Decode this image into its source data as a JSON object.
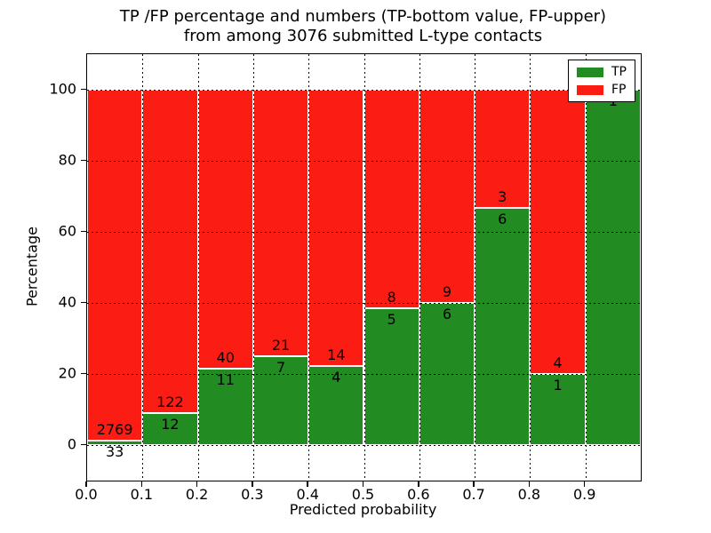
{
  "figure": {
    "title_line1": "TP /FP percentage and numbers (TP-bottom value, FP-upper)",
    "title_line2": "from among 3076 submitted L-type contacts",
    "xlabel": "Predicted probability",
    "ylabel": "Percentage"
  },
  "legend": {
    "position": "upper right",
    "items": [
      {
        "label": "TP",
        "color": "#228b22"
      },
      {
        "label": "FP",
        "color": "#fb1d13"
      }
    ]
  },
  "colors": {
    "tp": "#228b22",
    "fp": "#fb1d13",
    "grid": "#000000",
    "bar_edge": "#ffffff",
    "background": "#ffffff"
  },
  "chart_data": {
    "type": "bar",
    "stacked": true,
    "normalized_to_percent": true,
    "title": "TP /FP percentage and numbers (TP-bottom value, FP-upper) from among 3076 submitted L-type contacts",
    "xlabel": "Predicted probability",
    "ylabel": "Percentage",
    "total_contacts": 3076,
    "xlim": [
      0.0,
      1.0
    ],
    "ylim": [
      -10,
      110
    ],
    "grid": "dotted",
    "legend_position": "upper right",
    "xticks": [
      {
        "value": 0.0,
        "label": "0.0"
      },
      {
        "value": 0.1,
        "label": "0.1"
      },
      {
        "value": 0.2,
        "label": "0.2"
      },
      {
        "value": 0.3,
        "label": "0.3"
      },
      {
        "value": 0.4,
        "label": "0.4"
      },
      {
        "value": 0.5,
        "label": "0.5"
      },
      {
        "value": 0.6,
        "label": "0.6"
      },
      {
        "value": 0.7,
        "label": "0.7"
      },
      {
        "value": 0.8,
        "label": "0.8"
      },
      {
        "value": 0.9,
        "label": "0.9"
      }
    ],
    "yticks": [
      {
        "value": 0,
        "label": "0"
      },
      {
        "value": 20,
        "label": "20"
      },
      {
        "value": 40,
        "label": "40"
      },
      {
        "value": 60,
        "label": "60"
      },
      {
        "value": 80,
        "label": "80"
      },
      {
        "value": 100,
        "label": "100"
      }
    ],
    "bins": [
      {
        "x_range": [
          0.0,
          0.1
        ],
        "tp": 33,
        "fp": 2769,
        "tp_pct": 1.18,
        "fp_pct": 98.82
      },
      {
        "x_range": [
          0.1,
          0.2
        ],
        "tp": 12,
        "fp": 122,
        "tp_pct": 8.96,
        "fp_pct": 91.04
      },
      {
        "x_range": [
          0.2,
          0.3
        ],
        "tp": 11,
        "fp": 40,
        "tp_pct": 21.57,
        "fp_pct": 78.43
      },
      {
        "x_range": [
          0.3,
          0.4
        ],
        "tp": 7,
        "fp": 21,
        "tp_pct": 25.0,
        "fp_pct": 75.0
      },
      {
        "x_range": [
          0.4,
          0.5
        ],
        "tp": 4,
        "fp": 14,
        "tp_pct": 22.22,
        "fp_pct": 77.78
      },
      {
        "x_range": [
          0.5,
          0.6
        ],
        "tp": 5,
        "fp": 8,
        "tp_pct": 38.46,
        "fp_pct": 61.54
      },
      {
        "x_range": [
          0.6,
          0.7
        ],
        "tp": 6,
        "fp": 9,
        "tp_pct": 40.0,
        "fp_pct": 60.0
      },
      {
        "x_range": [
          0.7,
          0.8
        ],
        "tp": 6,
        "fp": 3,
        "tp_pct": 66.67,
        "fp_pct": 33.33
      },
      {
        "x_range": [
          0.8,
          0.9
        ],
        "tp": 1,
        "fp": 4,
        "tp_pct": 20.0,
        "fp_pct": 80.0
      },
      {
        "x_range": [
          0.9,
          1.0
        ],
        "tp": 1,
        "fp": 0,
        "tp_pct": 100.0,
        "fp_pct": 0.0
      }
    ],
    "series": [
      {
        "name": "TP",
        "color": "#228b22",
        "values_pct": [
          1.18,
          8.96,
          21.57,
          25.0,
          22.22,
          38.46,
          40.0,
          66.67,
          20.0,
          100.0
        ],
        "counts": [
          33,
          12,
          11,
          7,
          4,
          5,
          6,
          6,
          1,
          1
        ]
      },
      {
        "name": "FP",
        "color": "#fb1d13",
        "values_pct": [
          98.82,
          91.04,
          78.43,
          75.0,
          77.78,
          61.54,
          60.0,
          33.33,
          80.0,
          0.0
        ],
        "counts": [
          2769,
          122,
          40,
          21,
          14,
          8,
          9,
          3,
          4,
          0
        ]
      }
    ]
  }
}
